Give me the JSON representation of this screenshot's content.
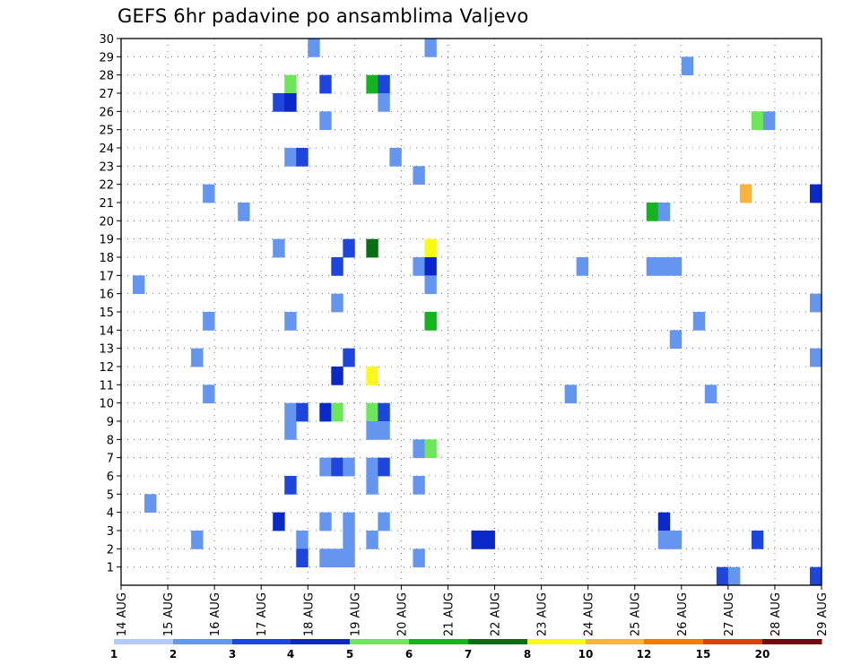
{
  "chart_data": {
    "type": "heatmap",
    "title": "GEFS 6hr padavine po ansamblima Valjevo",
    "xlabel": "",
    "ylabel": "",
    "x_tick_labels": [
      "14 AUG",
      "15 AUG",
      "16 AUG",
      "17 AUG",
      "18 AUG",
      "19 AUG",
      "20 AUG",
      "21 AUG",
      "22 AUG",
      "23 AUG",
      "24 AUG",
      "25 AUG",
      "26 AUG",
      "27 AUG",
      "28 AUG",
      "29 AUG"
    ],
    "y_tick_labels": [
      "1",
      "2",
      "3",
      "4",
      "5",
      "6",
      "7",
      "8",
      "9",
      "10",
      "11",
      "12",
      "13",
      "14",
      "15",
      "16",
      "17",
      "18",
      "19",
      "20",
      "21",
      "22",
      "23",
      "24",
      "25",
      "26",
      "27",
      "28",
      "29",
      "30"
    ],
    "x_unit": "6-hour step from 14 AUG 00Z",
    "ylim": [
      0,
      30
    ],
    "grid": true,
    "legend": {
      "placement": "bottom",
      "bounds": [
        "1",
        "2",
        "3",
        "4",
        "5",
        "6",
        "7",
        "8",
        "10",
        "12",
        "15",
        "20"
      ],
      "colors": [
        "#b4c8fa",
        "#6496f0",
        "#1e46dc",
        "#0a28c8",
        "#6ee65a",
        "#14b41e",
        "#0a6e14",
        "#fafa14",
        "#fab43c",
        "#f5780a",
        "#e13c0a",
        "#a01e0a",
        "#6e0a0a"
      ]
    },
    "cells": [
      {
        "x": 17,
        "y": 30,
        "v": 1.5
      },
      {
        "x": 27,
        "y": 30,
        "v": 1.5
      },
      {
        "x": 49,
        "y": 29,
        "v": 1.5
      },
      {
        "x": 15,
        "y": 28,
        "v": 4.5
      },
      {
        "x": 18,
        "y": 28,
        "v": 2.5
      },
      {
        "x": 22,
        "y": 28,
        "v": 5.5
      },
      {
        "x": 23,
        "y": 28,
        "v": 2.5
      },
      {
        "x": 14,
        "y": 27,
        "v": 2.5
      },
      {
        "x": 15,
        "y": 27,
        "v": 3.5
      },
      {
        "x": 23,
        "y": 27,
        "v": 1.5
      },
      {
        "x": 18,
        "y": 26,
        "v": 1.5
      },
      {
        "x": 55,
        "y": 26,
        "v": 4.5
      },
      {
        "x": 56,
        "y": 26,
        "v": 1.5
      },
      {
        "x": 15,
        "y": 24,
        "v": 1.5
      },
      {
        "x": 16,
        "y": 24,
        "v": 2.5
      },
      {
        "x": 24,
        "y": 24,
        "v": 1.5
      },
      {
        "x": 26,
        "y": 23,
        "v": 1.5
      },
      {
        "x": 8,
        "y": 22,
        "v": 1.5
      },
      {
        "x": 54,
        "y": 22,
        "v": 9
      },
      {
        "x": 60,
        "y": 22,
        "v": 3.5
      },
      {
        "x": 11,
        "y": 21,
        "v": 1.5
      },
      {
        "x": 46,
        "y": 21,
        "v": 5.5
      },
      {
        "x": 47,
        "y": 21,
        "v": 1.5
      },
      {
        "x": 14,
        "y": 19,
        "v": 1.5
      },
      {
        "x": 20,
        "y": 19,
        "v": 2.5
      },
      {
        "x": 22,
        "y": 19,
        "v": 6.5
      },
      {
        "x": 27,
        "y": 19,
        "v": 7.5
      },
      {
        "x": 19,
        "y": 18,
        "v": 2.5
      },
      {
        "x": 26,
        "y": 18,
        "v": 1.5
      },
      {
        "x": 27,
        "y": 18,
        "v": 3.5
      },
      {
        "x": 40,
        "y": 18,
        "v": 1.5
      },
      {
        "x": 46,
        "y": 18,
        "v": 1.5
      },
      {
        "x": 47,
        "y": 18,
        "v": 1.5
      },
      {
        "x": 48,
        "y": 18,
        "v": 1.5
      },
      {
        "x": 2,
        "y": 17,
        "v": 1.5
      },
      {
        "x": 27,
        "y": 17,
        "v": 1.5
      },
      {
        "x": 19,
        "y": 16,
        "v": 1.5
      },
      {
        "x": 60,
        "y": 16,
        "v": 1.5
      },
      {
        "x": 8,
        "y": 15,
        "v": 1.5
      },
      {
        "x": 15,
        "y": 15,
        "v": 1.5
      },
      {
        "x": 27,
        "y": 15,
        "v": 5.5
      },
      {
        "x": 50,
        "y": 15,
        "v": 1.5
      },
      {
        "x": 48,
        "y": 14,
        "v": 1.5
      },
      {
        "x": 7,
        "y": 13,
        "v": 1.5
      },
      {
        "x": 20,
        "y": 13,
        "v": 2.5
      },
      {
        "x": 60,
        "y": 13,
        "v": 1.5
      },
      {
        "x": 19,
        "y": 12,
        "v": 3.5
      },
      {
        "x": 22,
        "y": 12,
        "v": 7.5
      },
      {
        "x": 8,
        "y": 11,
        "v": 1.5
      },
      {
        "x": 39,
        "y": 11,
        "v": 1.5
      },
      {
        "x": 51,
        "y": 11,
        "v": 1.5
      },
      {
        "x": 15,
        "y": 10,
        "v": 1.5
      },
      {
        "x": 16,
        "y": 10,
        "v": 2.5
      },
      {
        "x": 18,
        "y": 10,
        "v": 3.5
      },
      {
        "x": 19,
        "y": 10,
        "v": 4.5
      },
      {
        "x": 22,
        "y": 10,
        "v": 4.5
      },
      {
        "x": 23,
        "y": 10,
        "v": 2.5
      },
      {
        "x": 15,
        "y": 9,
        "v": 1.5
      },
      {
        "x": 22,
        "y": 9,
        "v": 1.5
      },
      {
        "x": 23,
        "y": 9,
        "v": 1.5
      },
      {
        "x": 26,
        "y": 8,
        "v": 1.5
      },
      {
        "x": 27,
        "y": 8,
        "v": 4.5
      },
      {
        "x": 18,
        "y": 7,
        "v": 1.5
      },
      {
        "x": 19,
        "y": 7,
        "v": 2.5
      },
      {
        "x": 20,
        "y": 7,
        "v": 1.5
      },
      {
        "x": 22,
        "y": 7,
        "v": 1.5
      },
      {
        "x": 23,
        "y": 7,
        "v": 2.5
      },
      {
        "x": 15,
        "y": 6,
        "v": 2.5
      },
      {
        "x": 22,
        "y": 6,
        "v": 1.5
      },
      {
        "x": 26,
        "y": 6,
        "v": 1.5
      },
      {
        "x": 3,
        "y": 5,
        "v": 1.5
      },
      {
        "x": 14,
        "y": 4,
        "v": 3.5
      },
      {
        "x": 18,
        "y": 4,
        "v": 1.5
      },
      {
        "x": 20,
        "y": 4,
        "v": 1.5
      },
      {
        "x": 23,
        "y": 4,
        "v": 1.5
      },
      {
        "x": 47,
        "y": 4,
        "v": 3.5
      },
      {
        "x": 7,
        "y": 3,
        "v": 1.5
      },
      {
        "x": 16,
        "y": 3,
        "v": 1.5
      },
      {
        "x": 20,
        "y": 3,
        "v": 1.5
      },
      {
        "x": 22,
        "y": 3,
        "v": 1.5
      },
      {
        "x": 31,
        "y": 3,
        "v": 3.5
      },
      {
        "x": 32,
        "y": 3,
        "v": 3.5
      },
      {
        "x": 47,
        "y": 3,
        "v": 1.5
      },
      {
        "x": 48,
        "y": 3,
        "v": 1.5
      },
      {
        "x": 55,
        "y": 3,
        "v": 2.5
      },
      {
        "x": 16,
        "y": 2,
        "v": 2.5
      },
      {
        "x": 18,
        "y": 2,
        "v": 1.5
      },
      {
        "x": 19,
        "y": 2,
        "v": 1.5
      },
      {
        "x": 20,
        "y": 2,
        "v": 1.5
      },
      {
        "x": 26,
        "y": 2,
        "v": 1.5
      },
      {
        "x": 52,
        "y": 1,
        "v": 2.5
      },
      {
        "x": 53,
        "y": 1,
        "v": 1.5
      },
      {
        "x": 60,
        "y": 1,
        "v": 2.5
      }
    ]
  }
}
